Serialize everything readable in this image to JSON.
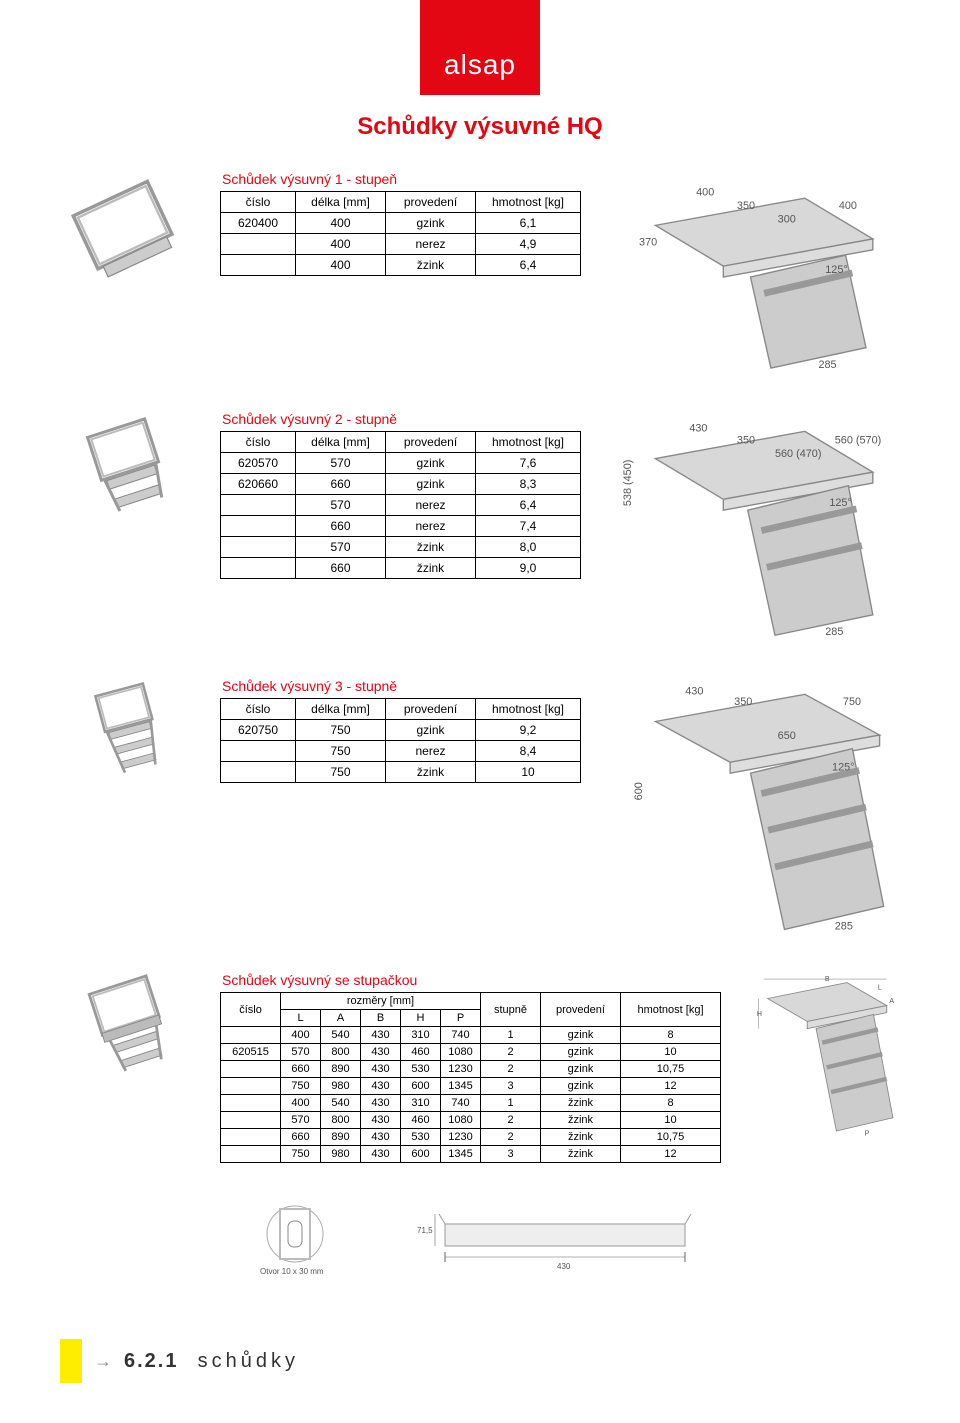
{
  "brand": "alsap",
  "page_title": "Schůdky výsuvné HQ",
  "colors": {
    "accent": "#e30613",
    "yellow": "#ffed00",
    "text": "#000000"
  },
  "sections": [
    {
      "title": "Schůdek výsuvný 1 - stupeň",
      "headers": [
        "číslo",
        "délka [mm]",
        "provedení",
        "hmotnost [kg]"
      ],
      "rows": [
        [
          "620400",
          "400",
          "gzink",
          "6,1"
        ],
        [
          "",
          "400",
          "nerez",
          "4,9"
        ],
        [
          "",
          "400",
          "žzink",
          "6,4"
        ]
      ]
    },
    {
      "title": "Schůdek výsuvný 2 - stupně",
      "headers": [
        "číslo",
        "délka [mm]",
        "provedení",
        "hmotnost [kg]"
      ],
      "rows": [
        [
          "620570",
          "570",
          "gzink",
          "7,6"
        ],
        [
          "620660",
          "660",
          "gzink",
          "8,3"
        ],
        [
          "",
          "570",
          "nerez",
          "6,4"
        ],
        [
          "",
          "660",
          "nerez",
          "7,4"
        ],
        [
          "",
          "570",
          "žzink",
          "8,0"
        ],
        [
          "",
          "660",
          "žzink",
          "9,0"
        ]
      ]
    },
    {
      "title": "Schůdek výsuvný 3 - stupně",
      "headers": [
        "číslo",
        "délka [mm]",
        "provedení",
        "hmotnost [kg]"
      ],
      "rows": [
        [
          "620750",
          "750",
          "gzink",
          "9,2"
        ],
        [
          "",
          "750",
          "nerez",
          "8,4"
        ],
        [
          "",
          "750",
          "žzink",
          "10"
        ]
      ]
    }
  ],
  "wide_section": {
    "title": "Schůdek výsuvný se stupačkou",
    "header_top": {
      "cislo": "číslo",
      "rozmery": "rozměry [mm]",
      "stupne": "stupně",
      "provedeni": "provedení",
      "hmotnost": "hmotnost [kg]"
    },
    "header_sub": [
      "L",
      "A",
      "B",
      "H",
      "P"
    ],
    "rows": [
      [
        "",
        "400",
        "540",
        "430",
        "310",
        "740",
        "1",
        "gzink",
        "8"
      ],
      [
        "620515",
        "570",
        "800",
        "430",
        "460",
        "1080",
        "2",
        "gzink",
        "10"
      ],
      [
        "",
        "660",
        "890",
        "430",
        "530",
        "1230",
        "2",
        "gzink",
        "10,75"
      ],
      [
        "",
        "750",
        "980",
        "430",
        "600",
        "1345",
        "3",
        "gzink",
        "12"
      ],
      [
        "",
        "400",
        "540",
        "430",
        "310",
        "740",
        "1",
        "žzink",
        "8"
      ],
      [
        "",
        "570",
        "800",
        "430",
        "460",
        "1080",
        "2",
        "žzink",
        "10"
      ],
      [
        "",
        "660",
        "890",
        "430",
        "530",
        "1230",
        "2",
        "žzink",
        "10,75"
      ],
      [
        "",
        "750",
        "980",
        "430",
        "600",
        "1345",
        "3",
        "žzink",
        "12"
      ]
    ]
  },
  "bottom_diagram": {
    "hole_label": "Otvor 10 x 30 mm",
    "height_label": "71,5",
    "width_label": "430"
  },
  "footer": {
    "number": "6.2.1",
    "text": "schůdky"
  },
  "diagram_labels": {
    "d1": [
      "400",
      "350",
      "300",
      "400",
      "370",
      "125°",
      "285"
    ],
    "d2": [
      "430",
      "350",
      "560 (470)",
      "560 (570)",
      "538 (450)",
      "125°",
      "285"
    ],
    "d3": [
      "430",
      "350",
      "750",
      "650",
      "600",
      "125°",
      "285"
    ],
    "d4": [
      "B",
      "L",
      "A",
      "H",
      "P"
    ]
  }
}
